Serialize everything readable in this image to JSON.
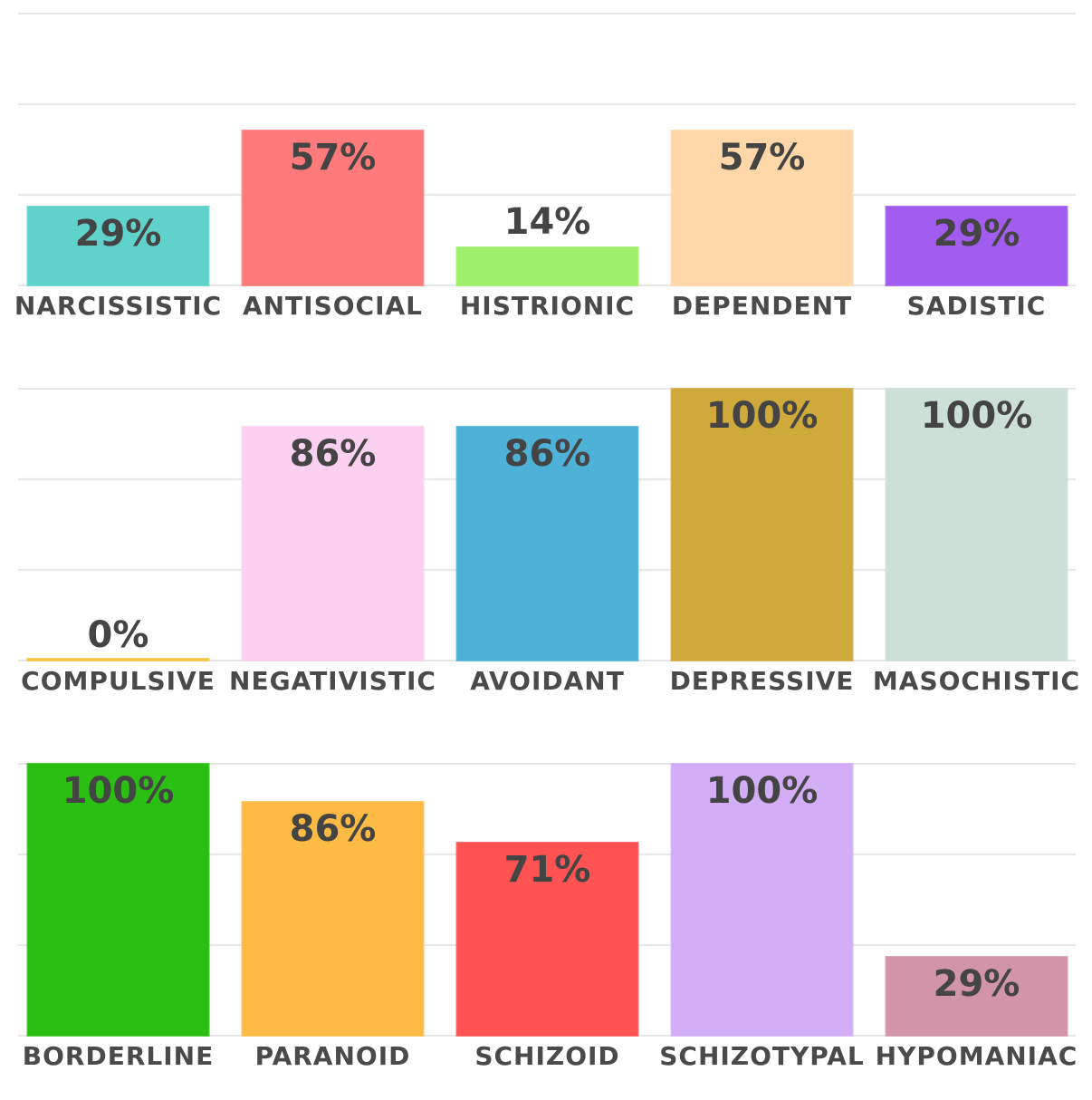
{
  "chart_data": [
    {
      "type": "bar",
      "categories": [
        "NARCISSISTIC",
        "ANTISOCIAL",
        "HISTRIONIC",
        "DEPENDENT",
        "SADISTIC"
      ],
      "values": [
        29,
        57,
        14,
        57,
        29
      ],
      "value_labels": [
        "29%",
        "57%",
        "14%",
        "57%",
        "29%"
      ],
      "colors": [
        "#5fd3cb",
        "#ff7b7b",
        "#9ef06a",
        "#ffd7a8",
        "#a25cf0"
      ],
      "ylim": [
        0,
        100
      ],
      "yticks": [
        0,
        33.3,
        66.7,
        100
      ],
      "grid": true
    },
    {
      "type": "bar",
      "categories": [
        "COMPULSIVE",
        "NEGATIVISTIC",
        "AVOIDANT",
        "DEPRESSIVE",
        "MASOCHISTIC"
      ],
      "values": [
        0,
        86,
        86,
        100,
        100
      ],
      "value_labels": [
        "0%",
        "86%",
        "86%",
        "100%",
        "100%"
      ],
      "colors": [
        "#f5c542",
        "#fbd0f0",
        "#4db1d8",
        "#cfa93a",
        "#cce0d8"
      ],
      "ylim": [
        0,
        100
      ],
      "yticks": [
        0,
        33.3,
        66.7,
        100
      ],
      "grid": true
    },
    {
      "type": "bar",
      "categories": [
        "BORDERLINE",
        "PARANOID",
        "SCHIZOID",
        "SCHIZOTYPAL",
        "HYPOMANIAC"
      ],
      "values": [
        100,
        86,
        71,
        100,
        29
      ],
      "value_labels": [
        "100%",
        "86%",
        "71%",
        "100%",
        "29%"
      ],
      "colors": [
        "#2abf12",
        "#fdbb45",
        "#ff5252",
        "#d3aef7",
        "#d194a8"
      ],
      "ylim": [
        0,
        100
      ],
      "yticks": [
        0,
        33.3,
        66.7,
        100
      ],
      "grid": true
    }
  ]
}
